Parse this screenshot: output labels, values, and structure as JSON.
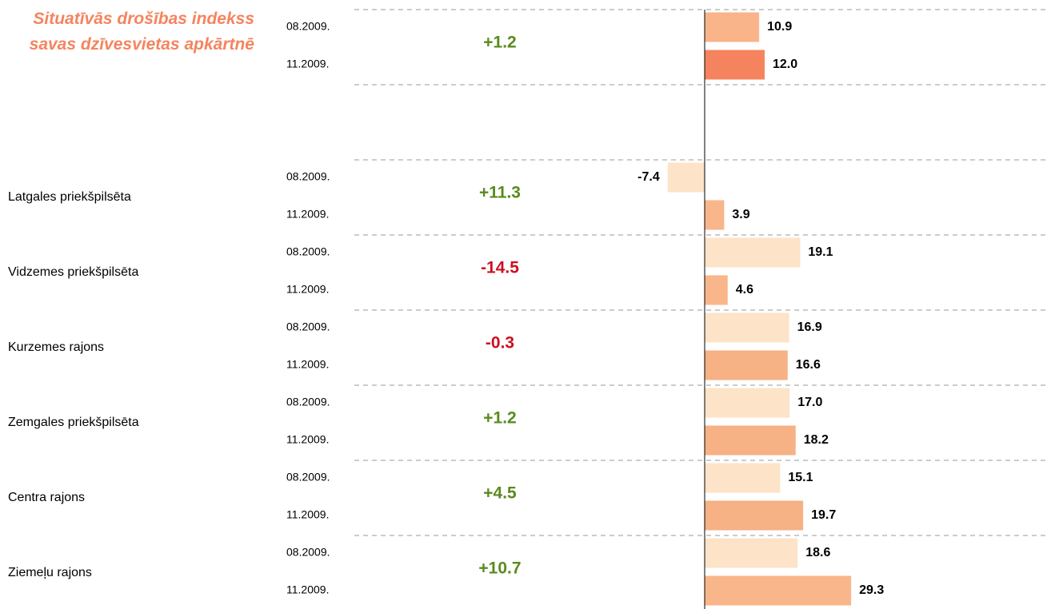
{
  "chart_data": {
    "type": "bar",
    "orientation": "horizontal",
    "title": "Situatīvās drošības indekss savas dzīvesvietas apkārtnē",
    "xlim": [
      -10,
      40
    ],
    "positive_color": "#5a8a1e",
    "negative_color": "#cc1020",
    "groups": [
      {
        "name": null,
        "change": 1.2,
        "change_label": "+1.2",
        "bars": [
          {
            "period": "08.2009.",
            "value": 10.9,
            "value_label": "10.9",
            "color": "#f9b48a"
          },
          {
            "period": "11.2009.",
            "value": 12.0,
            "value_label": "12.0",
            "color": "#f5845e"
          }
        ]
      },
      {
        "name": "Latgales priekšpilsēta",
        "change": 11.3,
        "change_label": "+11.3",
        "bars": [
          {
            "period": "08.2009.",
            "value": -7.4,
            "value_label": "-7.4",
            "color": "#fde3c8"
          },
          {
            "period": "11.2009.",
            "value": 3.9,
            "value_label": "3.9",
            "color": "#f8b68a"
          }
        ]
      },
      {
        "name": "Vidzemes priekšpilsēta",
        "change": -14.5,
        "change_label": "-14.5",
        "bars": [
          {
            "period": "08.2009.",
            "value": 19.1,
            "value_label": "19.1",
            "color": "#fde3c8"
          },
          {
            "period": "11.2009.",
            "value": 4.6,
            "value_label": "4.6",
            "color": "#f8b68a"
          }
        ]
      },
      {
        "name": "Kurzemes rajons",
        "change": -0.3,
        "change_label": "-0.3",
        "bars": [
          {
            "period": "08.2009.",
            "value": 16.9,
            "value_label": "16.9",
            "color": "#fde3c8"
          },
          {
            "period": "11.2009.",
            "value": 16.6,
            "value_label": "16.6",
            "color": "#f6b185"
          }
        ]
      },
      {
        "name": "Zemgales priekšpilsēta",
        "change": 1.2,
        "change_label": "+1.2",
        "bars": [
          {
            "period": "08.2009.",
            "value": 17.0,
            "value_label": "17.0",
            "color": "#fde3c8"
          },
          {
            "period": "11.2009.",
            "value": 18.2,
            "value_label": "18.2",
            "color": "#f6b185"
          }
        ]
      },
      {
        "name": "Centra rajons",
        "change": 4.5,
        "change_label": "+4.5",
        "bars": [
          {
            "period": "08.2009.",
            "value": 15.1,
            "value_label": "15.1",
            "color": "#fde3c8"
          },
          {
            "period": "11.2009.",
            "value": 19.7,
            "value_label": "19.7",
            "color": "#f6b185"
          }
        ]
      },
      {
        "name": "Ziemeļu rajons",
        "change": 10.7,
        "change_label": "+10.7",
        "bars": [
          {
            "period": "08.2009.",
            "value": 18.6,
            "value_label": "18.6",
            "color": "#fde3c8"
          },
          {
            "period": "11.2009.",
            "value": 29.3,
            "value_label": "29.3",
            "color": "#f8b68a"
          }
        ]
      }
    ]
  }
}
